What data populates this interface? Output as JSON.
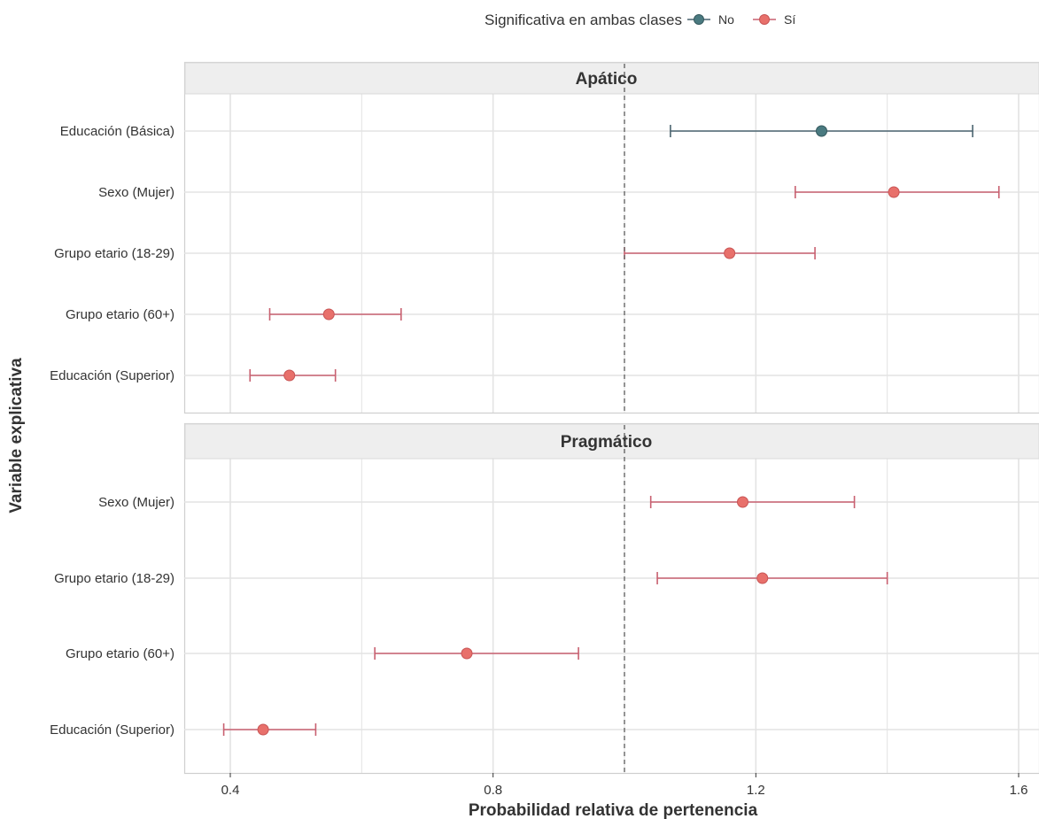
{
  "legend": {
    "title": "Significativa en ambas clases",
    "items": [
      {
        "label": "No",
        "color": "#4a7a80"
      },
      {
        "label": "Sí",
        "color": "#e8706b"
      }
    ]
  },
  "colors": {
    "No": "#4a7a80",
    "Sí": "#e8706b",
    "ci_no": "#4a6470",
    "ci_si": "#c86070",
    "strip_bg": "#eeeeee",
    "grid": "#e3e3e3"
  },
  "chart_data": {
    "type": "scatter",
    "subtype": "forest-plot with confidence intervals, faceted",
    "xlabel": "Probabilidad relativa de pertenencia",
    "ylabel": "Variable explicativa",
    "xlim": [
      0.33,
      1.63
    ],
    "xticks": [
      0.4,
      0.8,
      1.2,
      1.6
    ],
    "xtick_labels": [
      "0.4",
      "0.8",
      "1.2",
      "1.6"
    ],
    "reference_line": 1.0,
    "grid": true,
    "legend_position": "top",
    "facets": [
      {
        "title": "Apático",
        "rows": [
          {
            "label": "Educación (Básica)",
            "estimate": 1.3,
            "lower": 1.07,
            "upper": 1.53,
            "significant": "No"
          },
          {
            "label": "Sexo (Mujer)",
            "estimate": 1.41,
            "lower": 1.26,
            "upper": 1.57,
            "significant": "Sí"
          },
          {
            "label": "Grupo etario (18-29)",
            "estimate": 1.16,
            "lower": 1.0,
            "upper": 1.29,
            "significant": "Sí"
          },
          {
            "label": "Grupo etario (60+)",
            "estimate": 0.55,
            "lower": 0.46,
            "upper": 0.66,
            "significant": "Sí"
          },
          {
            "label": "Educación (Superior)",
            "estimate": 0.49,
            "lower": 0.43,
            "upper": 0.56,
            "significant": "Sí"
          }
        ]
      },
      {
        "title": "Pragmático",
        "rows": [
          {
            "label": "Sexo (Mujer)",
            "estimate": 1.18,
            "lower": 1.04,
            "upper": 1.35,
            "significant": "Sí"
          },
          {
            "label": "Grupo etario (18-29)",
            "estimate": 1.21,
            "lower": 1.05,
            "upper": 1.4,
            "significant": "Sí"
          },
          {
            "label": "Grupo etario (60+)",
            "estimate": 0.76,
            "lower": 0.62,
            "upper": 0.93,
            "significant": "Sí"
          },
          {
            "label": "Educación (Superior)",
            "estimate": 0.45,
            "lower": 0.39,
            "upper": 0.53,
            "significant": "Sí"
          }
        ]
      }
    ]
  }
}
